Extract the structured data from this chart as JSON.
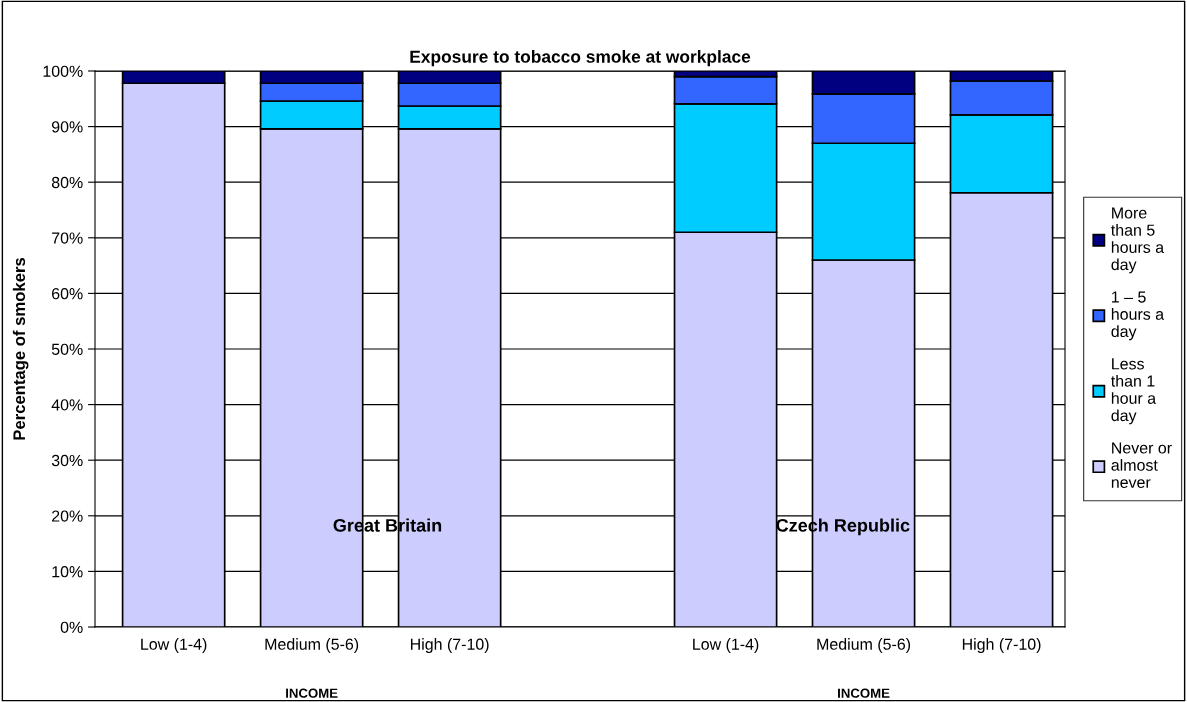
{
  "chart_data": {
    "type": "bar",
    "title": "Exposure to tobacco smoke at workplace",
    "ylabel": "Percentage of smokers",
    "categories": [
      "Low (1-4)",
      "Medium (5-6)",
      "High (7-10)",
      null,
      "Low (1-4)",
      "Medium (5-6)",
      "High (7-10)"
    ],
    "stacked": true,
    "series": [
      {
        "name": "Never or\nalmost\nnever",
        "color": "#ccccff",
        "values": [
          97.8,
          89.6,
          89.6,
          null,
          71.0,
          66.0,
          78.1
        ]
      },
      {
        "name": "Less\nthan 1\nhour a\nday",
        "color": "#00ccff",
        "values": [
          null,
          5.0,
          4.1,
          null,
          23.1,
          21.0,
          14.0
        ]
      },
      {
        "name": "1 – 5\nhours a\nday",
        "color": "#3366ff",
        "values": [
          null,
          3.2,
          4.1,
          null,
          4.9,
          8.9,
          6.1
        ]
      },
      {
        "name": "More\nthan 5\nhours a\nday",
        "color": "#000080",
        "values": [
          2.2,
          2.2,
          2.2,
          null,
          1.0,
          4.1,
          1.8
        ]
      }
    ],
    "ylim": [
      0,
      100
    ],
    "yticks": [
      {
        "value": 0,
        "label": "0%"
      },
      {
        "value": 10,
        "label": "10%"
      },
      {
        "value": 20,
        "label": "20%"
      },
      {
        "value": 30,
        "label": "30%"
      },
      {
        "value": 40,
        "label": "40%"
      },
      {
        "value": 50,
        "label": "50%"
      },
      {
        "value": 60,
        "label": "60%"
      },
      {
        "value": 70,
        "label": "70%"
      },
      {
        "value": 80,
        "label": "80%"
      },
      {
        "value": 90,
        "label": "90%"
      },
      {
        "value": 100,
        "label": "100%"
      }
    ],
    "grid": "y",
    "legend": "right",
    "annotations": [
      "Great Britain",
      "Czech Republic",
      "INCOME",
      "INCOME"
    ]
  }
}
